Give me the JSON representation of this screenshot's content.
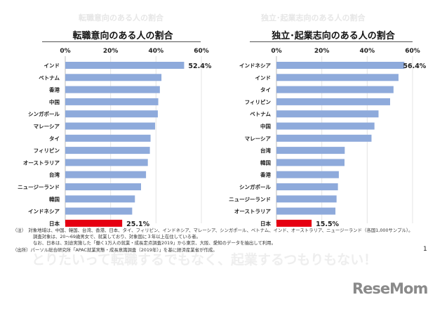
{
  "chart_data": [
    {
      "type": "bar",
      "orientation": "horizontal",
      "title": "転職意向のある人の割合",
      "ghost_title": "転職意向のある人の割合",
      "xlim": [
        0,
        60
      ],
      "ticks": [
        "0%",
        "20%",
        "40%",
        "60%"
      ],
      "grid": true,
      "categories": [
        "インド",
        "ベトナム",
        "香港",
        "中国",
        "シンガポール",
        "マレーシア",
        "タイ",
        "フィリピン",
        "オーストラリア",
        "台湾",
        "ニュージーランド",
        "韓国",
        "インドネシア",
        "日本"
      ],
      "values": [
        52.4,
        42.4,
        41.7,
        41.0,
        40.8,
        39.6,
        37.6,
        37.3,
        36.4,
        35.6,
        33.4,
        30.7,
        29.5,
        25.1
      ],
      "data_labels": {
        "0": "52.4%",
        "13": "25.1%"
      },
      "colors": {
        "bar": "#8eaadb",
        "highlight": "#e60012"
      }
    },
    {
      "type": "bar",
      "orientation": "horizontal",
      "title": "独立･起業志向のある人の割合",
      "ghost_title": "独立･起業志向のある人の割合",
      "xlim": [
        0,
        60
      ],
      "ticks": [
        "0%",
        "20%",
        "40%",
        "60%"
      ],
      "grid": true,
      "categories": [
        "インドネシア",
        "インド",
        "タイ",
        "フィリピン",
        "ベトナム",
        "中国",
        "マレーシア",
        "台湾",
        "韓国",
        "香港",
        "シンガポール",
        "ニュージーランド",
        "オーストラリア",
        "日本"
      ],
      "values": [
        56.4,
        53.8,
        51.6,
        50.1,
        45.0,
        43.2,
        41.9,
        30.1,
        30.0,
        27.5,
        27.1,
        26.5,
        26.0,
        15.5
      ],
      "data_labels": {
        "0": "56.4%",
        "13": "15.5%"
      },
      "colors": {
        "bar": "#8eaadb",
        "highlight": "#e60012"
      }
    }
  ],
  "notes": {
    "line1": "（注）　対象地域は、中国、韓国、台湾、香港、日本、タイ、フィリピン、インドネシア、マレーシア、シンガポール、ベトナム、インド、オーストラリア、ニュージーランド（各国1,000サンプル）。",
    "line2": "調査対象は、20～69歳男女で、就業しており、対象国に３年以上在住している者。",
    "line3": "なお、日本は、別途実施した「働く1万人の就業・成長定点調査2019」から東京、大阪、愛知のデータを抽出して利用。",
    "line4": "（出所）パーソル総合研究所「APAC就業実態・成長意識調査（2019年）」を基に経済産業省が作成。"
  },
  "page_number": "1",
  "ghost_caption": "とりたいって転職するでもなく、起業するつもりもない！",
  "logo": "ReseMom"
}
